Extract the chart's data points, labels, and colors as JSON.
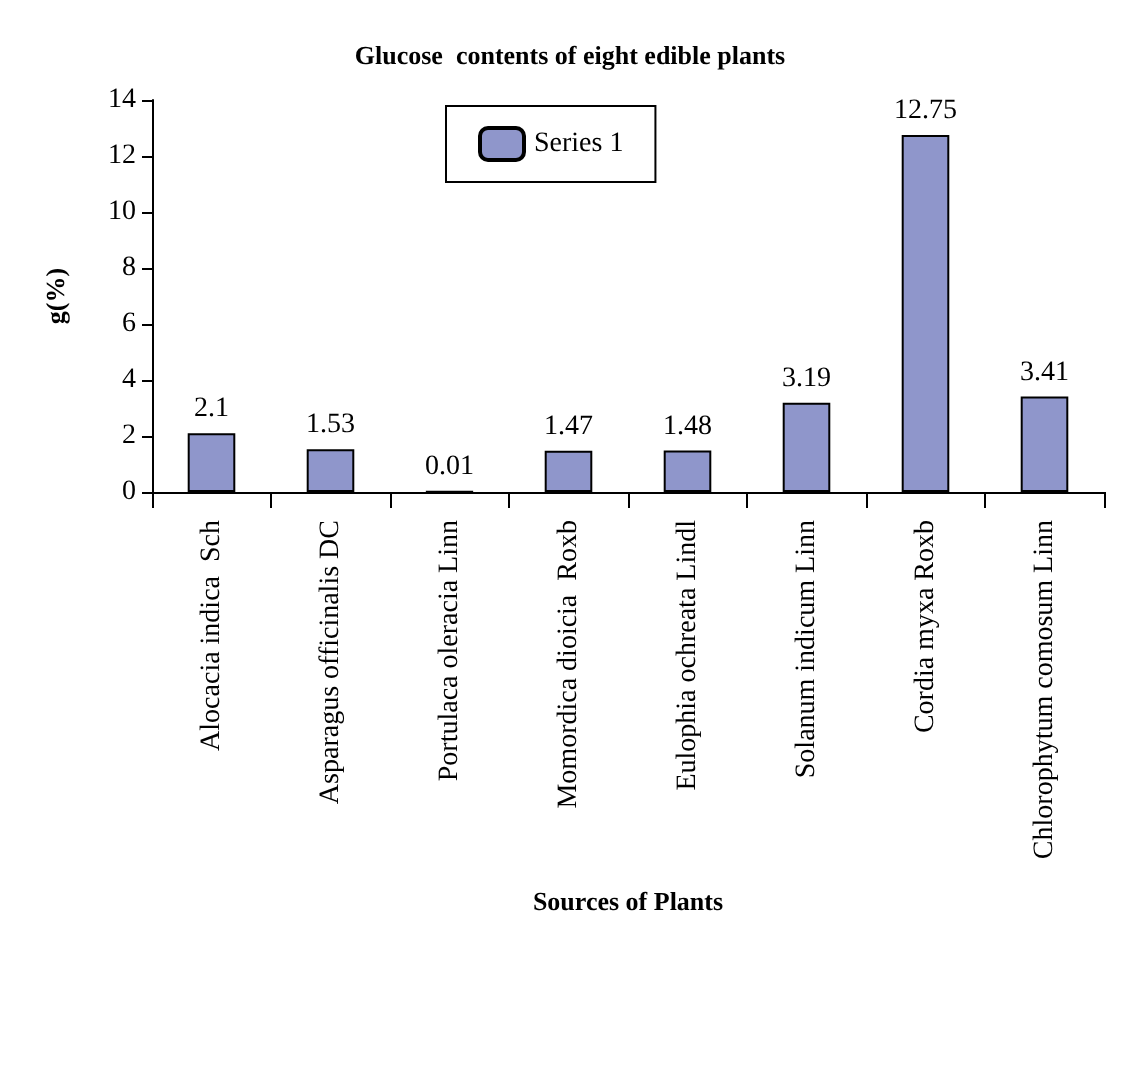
{
  "chart_data": {
    "type": "bar",
    "title": "Glucose  contents of eight edible plants",
    "xlabel": "Sources of Plants",
    "ylabel": "g(%)",
    "categories": [
      "Alocacia indica  Sch",
      "Asparagus officinalis DC",
      "Portulaca oleracia Linn",
      "Momordica dioicia  Roxb",
      "Eulophia ochreata Lindl",
      "Solanum indicum Linn",
      "Cordia myxa Roxb",
      "Chlorophytum comosum Linn"
    ],
    "series": [
      {
        "name": "Series 1",
        "color": "#8f96cb",
        "values": [
          2.1,
          1.53,
          0.01,
          1.47,
          1.48,
          3.19,
          12.75,
          3.41
        ]
      }
    ],
    "ylim": [
      0,
      14
    ],
    "yticks": [
      0,
      2,
      4,
      6,
      8,
      10,
      12,
      14
    ],
    "data_labels": true,
    "legend": "top",
    "grid": false
  }
}
